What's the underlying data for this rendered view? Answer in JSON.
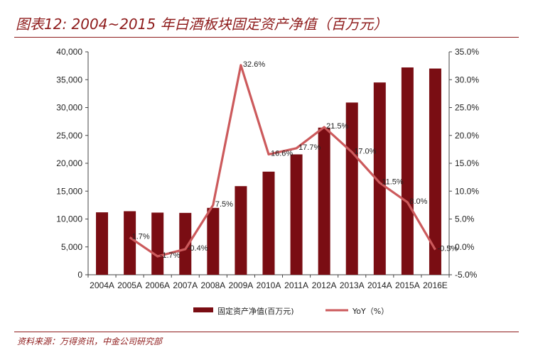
{
  "header": {
    "title": "图表12: 2004~2015 年白酒板块固定资产净值（百万元）"
  },
  "footer": {
    "source": "资料来源：万得资讯，中金公司研究部"
  },
  "colors": {
    "bar": "#7a0d13",
    "line": "#cc5a5c",
    "title": "#8e1b1b"
  },
  "chart_data": {
    "type": "bar",
    "categories": [
      "2004A",
      "2005A",
      "2006A",
      "2007A",
      "2008A",
      "2009A",
      "2010A",
      "2011A",
      "2012A",
      "2013A",
      "2014A",
      "2015A",
      "2016E"
    ],
    "series": [
      {
        "name": "固定资产净值(百万元)",
        "type": "bar",
        "axis": "left",
        "values": [
          11200,
          11400,
          11150,
          11100,
          12000,
          15900,
          18500,
          21600,
          26400,
          30900,
          34500,
          37200,
          37000
        ]
      },
      {
        "name": "YoY（%）",
        "type": "line",
        "axis": "right",
        "values": [
          null,
          1.7,
          -1.7,
          -0.4,
          7.5,
          32.6,
          16.6,
          17.7,
          21.5,
          17.0,
          11.5,
          8.0,
          -0.5
        ],
        "labels": [
          "",
          "1.7%",
          "-1.7%",
          "-0.4%",
          "7.5%",
          "32.6%",
          "16.6%",
          "17.7%",
          "21.5%",
          "17.0%",
          "11.5%",
          "8.0%",
          "-0.5%"
        ]
      }
    ],
    "y_left": {
      "min": 0,
      "max": 40000,
      "ticks": [
        0,
        5000,
        10000,
        15000,
        20000,
        25000,
        30000,
        35000,
        40000
      ],
      "tick_labels": [
        "0",
        "5,000",
        "10,000",
        "15,000",
        "20,000",
        "25,000",
        "30,000",
        "35,000",
        "40,000"
      ]
    },
    "y_right": {
      "min": -5,
      "max": 35,
      "ticks": [
        -5,
        0,
        5,
        10,
        15,
        20,
        25,
        30,
        35
      ],
      "tick_labels": [
        "-5.0%",
        "0.0%",
        "5.0%",
        "10.0%",
        "15.0%",
        "20.0%",
        "25.0%",
        "30.0%",
        "35.0%"
      ]
    },
    "grid": false,
    "legend": "bottom"
  }
}
